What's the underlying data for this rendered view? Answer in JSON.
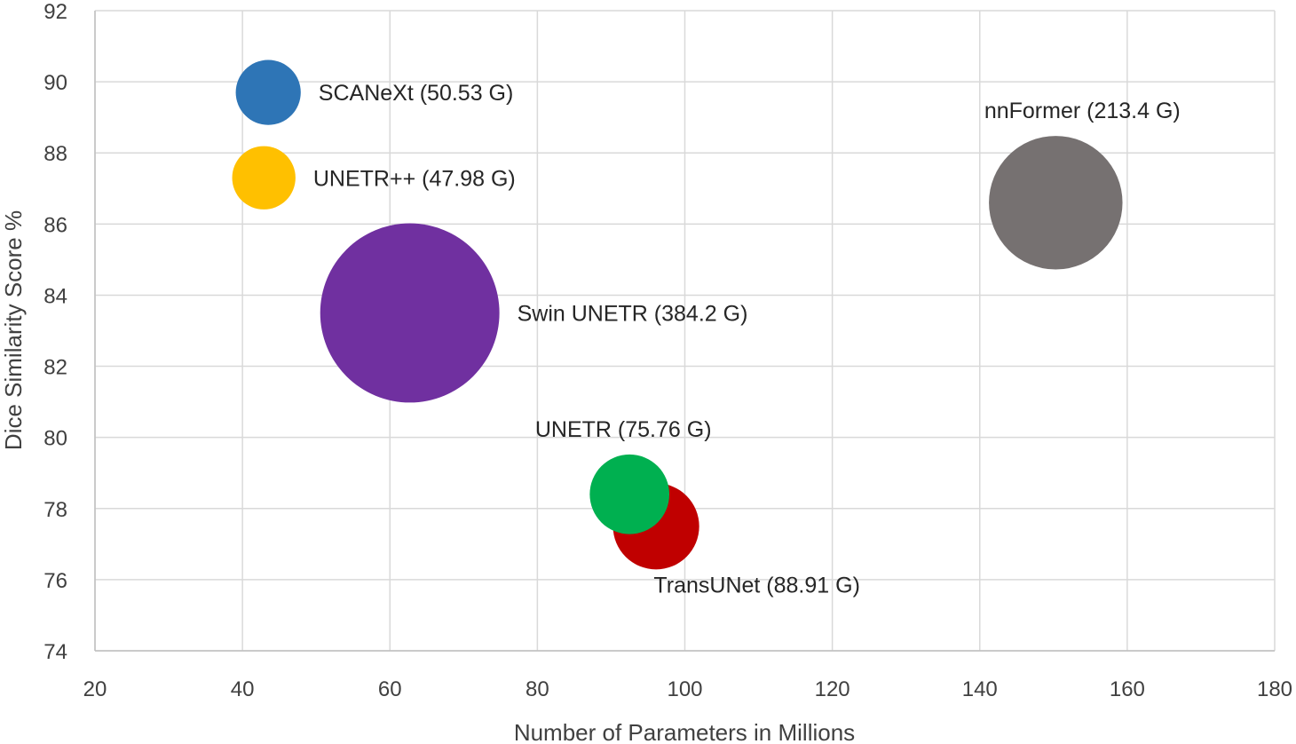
{
  "chart_data": {
    "type": "bubble",
    "title": "",
    "xlabel": "Number of Parameters in Millions",
    "ylabel": "Dice Similarity Score %",
    "xlim": [
      20,
      180
    ],
    "ylim": [
      74,
      92
    ],
    "xticks": [
      20,
      40,
      60,
      80,
      100,
      120,
      140,
      160,
      180
    ],
    "yticks": [
      74,
      76,
      78,
      80,
      82,
      84,
      86,
      88,
      90,
      92
    ],
    "grid": true,
    "size_unit": "GFLOPs",
    "series": [
      {
        "name": "TransUNet",
        "label": "TransUNet (88.91 G)",
        "x": 96.1,
        "y": 77.5,
        "size": 88.91,
        "color": "#C00000",
        "label_pos": "below"
      },
      {
        "name": "UNETR",
        "label": "UNETR (75.76 G)",
        "x": 92.5,
        "y": 78.4,
        "size": 75.76,
        "color": "#00B050",
        "label_pos": "above"
      },
      {
        "name": "Swin UNETR",
        "label": "Swin UNETR (384.2 G)",
        "x": 62.7,
        "y": 83.5,
        "size": 384.2,
        "color": "#7030A0",
        "label_pos": "right"
      },
      {
        "name": "nnFormer",
        "label": "nnFormer (213.4 G)",
        "x": 150.3,
        "y": 86.6,
        "size": 213.4,
        "color": "#767171",
        "label_pos": "above"
      },
      {
        "name": "UNETR++",
        "label": "UNETR++ (47.98 G)",
        "x": 42.9,
        "y": 87.3,
        "size": 47.98,
        "color": "#FFC000",
        "label_pos": "right"
      },
      {
        "name": "SCANeXt",
        "label": "SCANeXt (50.53 G)",
        "x": 43.5,
        "y": 89.7,
        "size": 50.53,
        "color": "#2E75B6",
        "label_pos": "right"
      }
    ]
  }
}
